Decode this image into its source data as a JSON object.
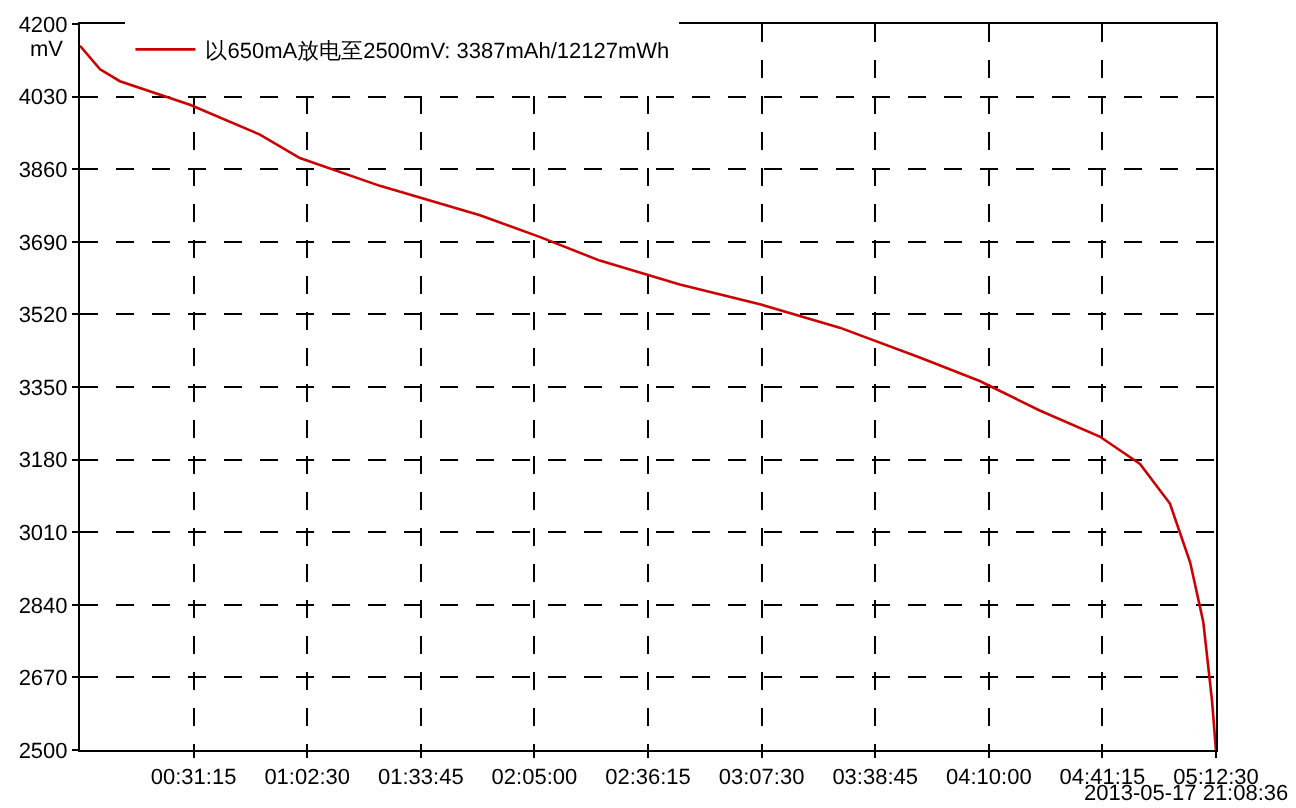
{
  "chart_data": {
    "type": "line",
    "ylabel": "mV",
    "annotations": [
      "2013-05-17 21:08:36"
    ],
    "x": [
      0,
      0.092,
      0.183,
      0.504,
      0.825,
      1.008,
      1.375,
      1.834,
      2.11,
      2.383,
      2.75,
      3.117,
      3.483,
      3.85,
      4.125,
      4.4,
      4.675,
      4.86,
      4.997,
      5.09,
      5.15,
      5.19,
      5.208
    ],
    "series": [
      {
        "name": "以650mA放电至2500mV: 3387mAh/12127mWh",
        "color": "#cc0000",
        "values": [
          4149,
          4094,
          4066,
          4011,
          3941,
          3886,
          3821,
          3752,
          3701,
          3646,
          3590,
          3544,
          3489,
          3419,
          3364,
          3295,
          3234,
          3170,
          3077,
          2939,
          2800,
          2616,
          2500
        ]
      }
    ],
    "xlim": [
      0,
      5.2083
    ],
    "xticks": [
      {
        "value": 0.5208,
        "label": "00:31:15"
      },
      {
        "value": 1.0417,
        "label": "01:02:30"
      },
      {
        "value": 1.5625,
        "label": "01:33:45"
      },
      {
        "value": 2.0833,
        "label": "02:05:00"
      },
      {
        "value": 2.6042,
        "label": "02:36:15"
      },
      {
        "value": 3.125,
        "label": "03:07:30"
      },
      {
        "value": 3.6458,
        "label": "03:38:45"
      },
      {
        "value": 4.1667,
        "label": "04:10:00"
      },
      {
        "value": 4.6875,
        "label": "04:41:15"
      },
      {
        "value": 5.2083,
        "label": "05:12:30"
      }
    ],
    "ylim": [
      2500,
      4200
    ],
    "yticks": [
      2500,
      2670,
      2840,
      3010,
      3180,
      3350,
      3520,
      3690,
      3860,
      4030,
      4200
    ],
    "grid": true,
    "legend": "top left",
    "marker": "none",
    "line_style": "solid"
  }
}
